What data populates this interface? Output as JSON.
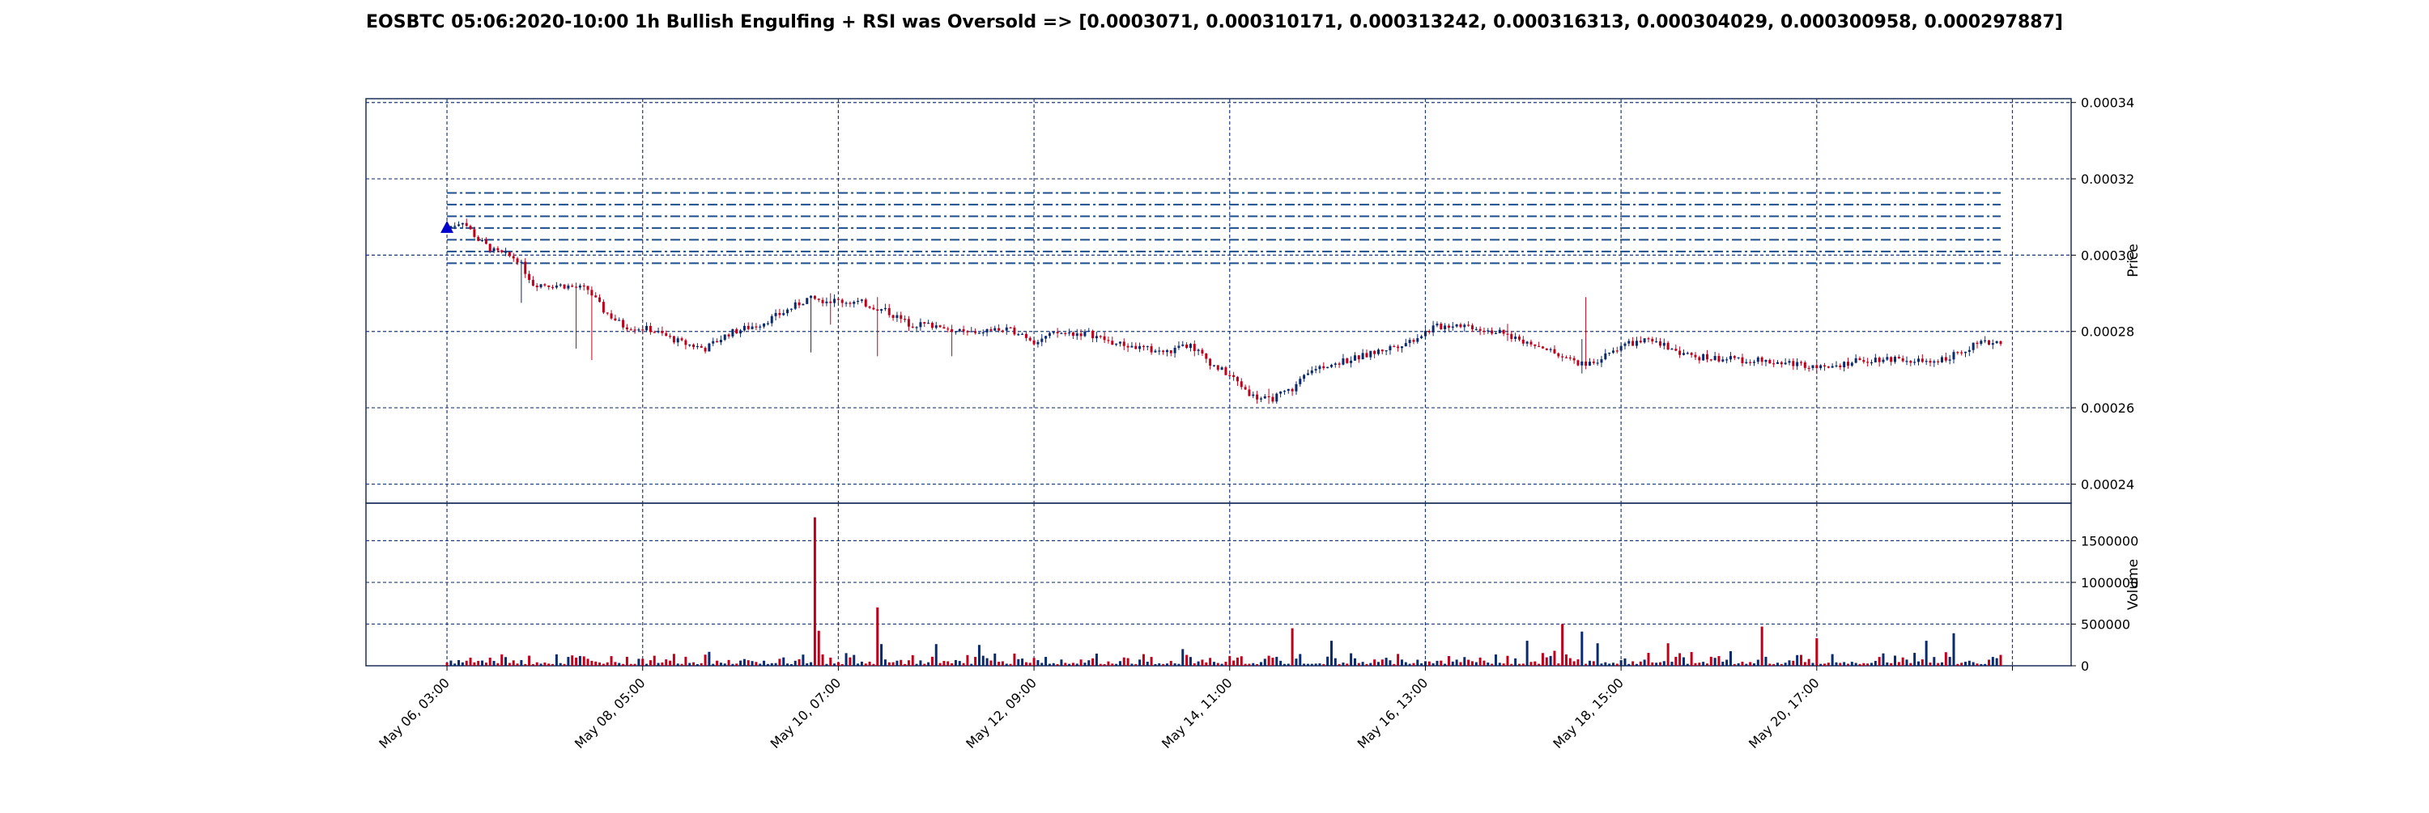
{
  "chart_data": {
    "type": "candlestick",
    "title": "EOSBTC 05:06:2020-10:00 1h Bullish Engulfing + RSI was Oversold => [0.0003071, 0.000310171, 0.000313242, 0.000316313, 0.000304029, 0.000300958, 0.000297887]",
    "symbol": "EOSBTC",
    "interval": "1h",
    "price_panel": {
      "ylabel": "Price",
      "ylim": [
        0.000235,
        0.000341
      ],
      "yticks": [
        "0.00024",
        "0.00026",
        "0.00028",
        "0.00030",
        "0.00032",
        "0.00034"
      ],
      "ytick_values": [
        0.00024,
        0.00026,
        0.00028,
        0.0003,
        0.00032,
        0.00034
      ]
    },
    "volume_panel": {
      "ylabel": "Volume",
      "ylim": [
        0,
        1950000
      ],
      "yticks": [
        "0",
        "500000",
        "1000000",
        "1500000"
      ],
      "ytick_values": [
        0,
        500000,
        1000000,
        1500000
      ]
    },
    "x_ticks": [
      {
        "label": "May 06, 03:00",
        "hour": 0
      },
      {
        "label": "May 08, 05:00",
        "hour": 50
      },
      {
        "label": "May 10, 07:00",
        "hour": 100
      },
      {
        "label": "May 12, 09:00",
        "hour": 150
      },
      {
        "label": "May 14, 11:00",
        "hour": 200
      },
      {
        "label": "May 16, 13:00",
        "hour": 250
      },
      {
        "label": "May 18, 15:00",
        "hour": 300
      },
      {
        "label": "May 20, 17:00",
        "hour": 350
      }
    ],
    "x_range_hours": [
      -20.7,
      415.0
    ],
    "last_hour": 397,
    "signal": {
      "hour": 0,
      "price": 0.0003071,
      "marker": "triangle-up",
      "color": "#0000cc"
    },
    "target_levels": [
      0.0003071,
      0.000310171,
      0.000313242,
      0.000316313,
      0.000304029,
      0.000300958,
      0.000297887
    ],
    "level_line_range_hours": [
      0,
      397
    ],
    "price_path": [
      [
        0,
        0.0003071
      ],
      [
        4,
        0.000309
      ],
      [
        8,
        0.000304
      ],
      [
        12,
        0.000301
      ],
      [
        18,
        0.000299
      ],
      [
        22,
        0.0002925
      ],
      [
        30,
        0.000292
      ],
      [
        36,
        0.000291
      ],
      [
        40,
        0.0002855
      ],
      [
        45,
        0.0002815
      ],
      [
        52,
        0.0002805
      ],
      [
        60,
        0.000277
      ],
      [
        66,
        0.0002755
      ],
      [
        72,
        0.0002795
      ],
      [
        80,
        0.000282
      ],
      [
        86,
        0.000285
      ],
      [
        92,
        0.0002885
      ],
      [
        100,
        0.000288
      ],
      [
        106,
        0.0002875
      ],
      [
        112,
        0.0002855
      ],
      [
        118,
        0.000282
      ],
      [
        126,
        0.0002815
      ],
      [
        132,
        0.0002795
      ],
      [
        140,
        0.0002805
      ],
      [
        146,
        0.00028
      ],
      [
        150,
        0.0002775
      ],
      [
        156,
        0.0002795
      ],
      [
        164,
        0.0002795
      ],
      [
        170,
        0.000277
      ],
      [
        178,
        0.0002755
      ],
      [
        184,
        0.0002745
      ],
      [
        190,
        0.0002765
      ],
      [
        196,
        0.000271
      ],
      [
        200,
        0.0002685
      ],
      [
        206,
        0.000263
      ],
      [
        210,
        0.000262
      ],
      [
        216,
        0.000265
      ],
      [
        222,
        0.0002705
      ],
      [
        228,
        0.000272
      ],
      [
        234,
        0.0002735
      ],
      [
        240,
        0.0002755
      ],
      [
        246,
        0.0002775
      ],
      [
        252,
        0.000281
      ],
      [
        258,
        0.000282
      ],
      [
        266,
        0.0002805
      ],
      [
        274,
        0.000278
      ],
      [
        280,
        0.000276
      ],
      [
        286,
        0.0002725
      ],
      [
        292,
        0.0002715
      ],
      [
        296,
        0.0002735
      ],
      [
        300,
        0.0002765
      ],
      [
        306,
        0.0002775
      ],
      [
        312,
        0.000276
      ],
      [
        318,
        0.0002735
      ],
      [
        324,
        0.000273
      ],
      [
        332,
        0.0002725
      ],
      [
        340,
        0.000272
      ],
      [
        348,
        0.0002712
      ],
      [
        356,
        0.0002715
      ],
      [
        364,
        0.0002728
      ],
      [
        372,
        0.000273
      ],
      [
        378,
        0.0002718
      ],
      [
        384,
        0.0002735
      ],
      [
        390,
        0.0002765
      ],
      [
        397,
        0.0002775
      ]
    ],
    "price_spikes": [
      {
        "hour": 19,
        "high": 0.0002965,
        "low": 0.0002875
      },
      {
        "hour": 33,
        "high": 0.0002925,
        "low": 0.0002755
      },
      {
        "hour": 37,
        "high": 0.0002905,
        "low": 0.0002725
      },
      {
        "hour": 93,
        "high": 0.0002895,
        "low": 0.0002745
      },
      {
        "hour": 98,
        "high": 0.00029,
        "low": 0.0002818
      },
      {
        "hour": 110,
        "high": 0.000289,
        "low": 0.0002735
      },
      {
        "hour": 129,
        "high": 0.0002815,
        "low": 0.0002735
      },
      {
        "hour": 191,
        "high": 0.0002775,
        "low": 0.0002735
      },
      {
        "hour": 210,
        "high": 0.000265,
        "low": 0.000261
      },
      {
        "hour": 271,
        "high": 0.000282,
        "low": 0.0002775
      },
      {
        "hour": 290,
        "high": 0.000278,
        "low": 0.000269
      },
      {
        "hour": 291,
        "high": 0.000289,
        "low": 0.0002745
      }
    ],
    "volume_spikes": [
      {
        "hour": 94,
        "volume": 1780000
      },
      {
        "hour": 95,
        "volume": 420000
      },
      {
        "hour": 110,
        "volume": 700000
      },
      {
        "hour": 111,
        "volume": 260000
      },
      {
        "hour": 125,
        "volume": 260000
      },
      {
        "hour": 136,
        "volume": 250000
      },
      {
        "hour": 188,
        "volume": 200000
      },
      {
        "hour": 216,
        "volume": 450000
      },
      {
        "hour": 226,
        "volume": 300000
      },
      {
        "hour": 276,
        "volume": 300000
      },
      {
        "hour": 285,
        "volume": 500000
      },
      {
        "hour": 290,
        "volume": 410000
      },
      {
        "hour": 294,
        "volume": 270000
      },
      {
        "hour": 312,
        "volume": 270000
      },
      {
        "hour": 336,
        "volume": 470000
      },
      {
        "hour": 350,
        "volume": 330000
      },
      {
        "hour": 378,
        "volume": 300000
      },
      {
        "hour": 385,
        "volume": 390000
      }
    ],
    "base_volume_range": [
      20000,
      130000
    ],
    "colors": {
      "up": "#0a2a6e",
      "down": "#c0001a",
      "grid": "#1f3a7a",
      "levels": "#1f4e8c",
      "axis": "#000000"
    },
    "grid": true
  }
}
